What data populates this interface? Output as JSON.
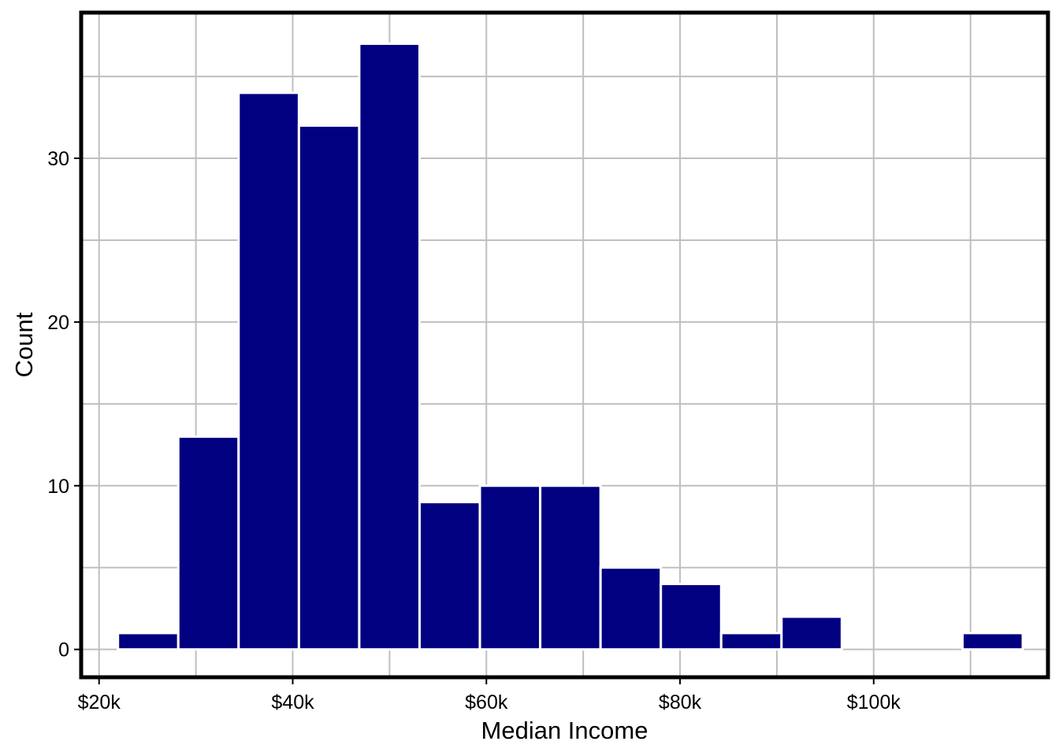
{
  "chart_data": {
    "type": "bar",
    "subtype": "histogram",
    "xlabel": "Median Income",
    "ylabel": "Count",
    "xlim": [
      18150,
      118000
    ],
    "ylim": [
      -1.7,
      38.9
    ],
    "x_ticks": [
      {
        "value": 20000,
        "label": "$20k"
      },
      {
        "value": 40000,
        "label": "$40k"
      },
      {
        "value": 60000,
        "label": "$60k"
      },
      {
        "value": 80000,
        "label": "$80k"
      },
      {
        "value": 100000,
        "label": "$100k"
      }
    ],
    "y_ticks": [
      {
        "value": 0,
        "label": "0"
      },
      {
        "value": 10,
        "label": "10"
      },
      {
        "value": 20,
        "label": "20"
      },
      {
        "value": 30,
        "label": "30"
      }
    ],
    "bin_width": 6230,
    "bins": [
      {
        "x0": 21950,
        "count": 1
      },
      {
        "x0": 28180,
        "count": 13
      },
      {
        "x0": 34410,
        "count": 34
      },
      {
        "x0": 40640,
        "count": 32
      },
      {
        "x0": 46870,
        "count": 37
      },
      {
        "x0": 53100,
        "count": 9
      },
      {
        "x0": 59330,
        "count": 10
      },
      {
        "x0": 65560,
        "count": 10
      },
      {
        "x0": 71790,
        "count": 5
      },
      {
        "x0": 78020,
        "count": 4
      },
      {
        "x0": 84250,
        "count": 1
      },
      {
        "x0": 90480,
        "count": 2
      },
      {
        "x0": 96710,
        "count": 0
      },
      {
        "x0": 102940,
        "count": 0
      },
      {
        "x0": 109170,
        "count": 1
      }
    ],
    "bar_color": "#000080",
    "bar_outline_color": "#ffffff",
    "grid": true,
    "grid_color": "#bfbfbf",
    "panel_border_color": "#000000",
    "legend": "none"
  }
}
